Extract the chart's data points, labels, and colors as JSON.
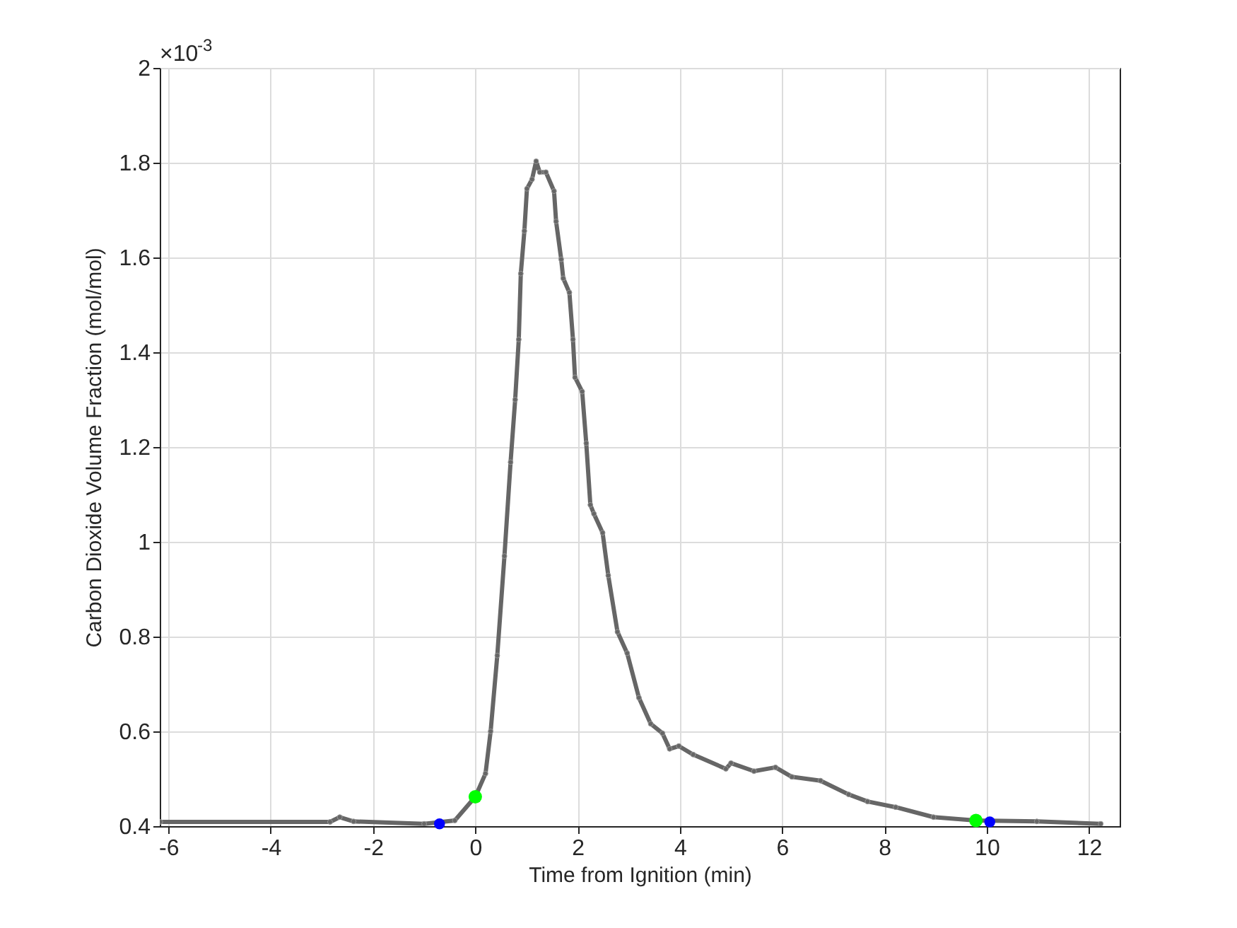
{
  "chart_data": {
    "type": "line",
    "xlabel": "Time from Ignition (min)",
    "ylabel": "Carbon Dioxide Volume Fraction (mol/mol)",
    "annotations": [
      "×10$^{-3}$"
    ],
    "xlim": [
      -6.17,
      12.6
    ],
    "xticks": [
      -6,
      -4,
      -2,
      0,
      2,
      4,
      6,
      8,
      10,
      12
    ],
    "ylim": [
      0.4,
      2
    ],
    "yticks": [
      0.4,
      0.6,
      0.8,
      1,
      1.2,
      1.4,
      1.6,
      1.8,
      2
    ],
    "grid": true,
    "series": [
      {
        "color": "#666666",
        "marker": "circle",
        "line_style": "solid",
        "x": [
          -6.16,
          -2.84,
          -2.65,
          -2.38,
          -1.0,
          -0.4,
          0.0,
          0.2,
          0.3,
          0.43,
          0.57,
          0.69,
          0.78,
          0.85,
          0.89,
          0.96,
          1.01,
          1.11,
          1.19,
          1.26,
          1.38,
          1.54,
          1.58,
          1.68,
          1.72,
          1.84,
          1.91,
          1.95,
          2.09,
          2.17,
          2.25,
          2.32,
          2.49,
          2.6,
          2.78,
          2.97,
          3.2,
          3.43,
          3.66,
          3.8,
          3.98,
          4.26,
          4.9,
          5.0,
          5.45,
          5.87,
          6.19,
          6.75,
          7.3,
          7.67,
          8.22,
          8.96,
          9.79,
          10.98,
          12.23
        ],
        "values": [
          0.409,
          0.409,
          0.419,
          0.41,
          0.405,
          0.412,
          0.462,
          0.511,
          0.6,
          0.76,
          0.97,
          1.168,
          1.3,
          1.427,
          1.566,
          1.656,
          1.745,
          1.765,
          1.803,
          1.78,
          1.78,
          1.74,
          1.676,
          1.596,
          1.556,
          1.526,
          1.427,
          1.347,
          1.317,
          1.208,
          1.078,
          1.059,
          1.019,
          0.929,
          0.81,
          0.765,
          0.671,
          0.616,
          0.596,
          0.563,
          0.569,
          0.551,
          0.521,
          0.533,
          0.516,
          0.524,
          0.504,
          0.496,
          0.467,
          0.452,
          0.44,
          0.419,
          0.412,
          0.41,
          0.405
        ]
      },
      {
        "type": "scatter",
        "color": "#0000ff",
        "marker": "circle",
        "x": [
          -0.7,
          10.06
        ],
        "values": [
          0.405,
          0.409
        ]
      },
      {
        "type": "scatter",
        "color": "#00ff00",
        "marker": "circle",
        "x": [
          0.0,
          9.79
        ],
        "values": [
          0.462,
          0.412
        ]
      }
    ]
  }
}
